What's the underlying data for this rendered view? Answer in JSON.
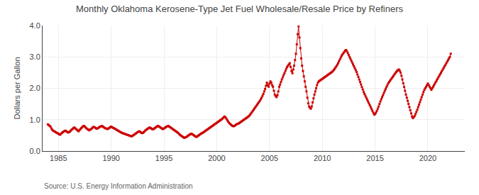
{
  "chart_data": {
    "type": "line",
    "title": "Monthly Oklahoma Kerosene-Type Jet Fuel Wholesale/Resale Price by Refiners",
    "ylabel": "Dollars per Gallon",
    "annotations": [
      "Source: U.S. Energy Information Administration"
    ],
    "color": "#cc0000",
    "marker": "square",
    "line_style": "solid",
    "grid": true,
    "xlim": [
      1983.5,
      2023.5
    ],
    "ylim": [
      0.0,
      4.0
    ],
    "xticks": [
      1985,
      1990,
      1995,
      2000,
      2005,
      2010,
      2015,
      2020
    ],
    "yticks": [
      {
        "value": 0.0,
        "label": "0.0"
      },
      {
        "value": 1.0,
        "label": "1.0"
      },
      {
        "value": 2.0,
        "label": "2.0"
      },
      {
        "value": 3.0,
        "label": "3.0"
      },
      {
        "value": 4.0,
        "label": "4.0"
      }
    ],
    "x": [
      1984.0,
      1984.0833333333333,
      1984.1666666666667,
      1984.25,
      1984.3333333333333,
      1984.4166666666667,
      1984.5,
      1984.5833333333333,
      1984.6666666666667,
      1984.75,
      1984.8333333333333,
      1984.9166666666667,
      1985.0,
      1985.0833333333333,
      1985.1666666666667,
      1985.25,
      1985.3333333333333,
      1985.4166666666667,
      1985.5,
      1985.5833333333333,
      1985.6666666666667,
      1985.75,
      1985.8333333333333,
      1985.9166666666667,
      1986.0,
      1986.0833333333333,
      1986.1666666666667,
      1986.25,
      1986.3333333333333,
      1986.4166666666667,
      1986.5,
      1986.5833333333333,
      1986.6666666666667,
      1986.75,
      1986.8333333333333,
      1986.9166666666667,
      1987.0,
      1987.0833333333333,
      1987.1666666666667,
      1987.25,
      1987.3333333333333,
      1987.4166666666667,
      1987.5,
      1987.5833333333333,
      1987.6666666666667,
      1987.75,
      1987.8333333333333,
      1987.9166666666667,
      1988.0,
      1988.0833333333333,
      1988.1666666666667,
      1988.25,
      1988.3333333333333,
      1988.4166666666667,
      1988.5,
      1988.5833333333333,
      1988.6666666666667,
      1988.75,
      1988.8333333333333,
      1988.9166666666667,
      1989.0,
      1989.0833333333333,
      1989.1666666666667,
      1989.25,
      1989.3333333333333,
      1989.4166666666667,
      1989.5,
      1989.5833333333333,
      1989.6666666666667,
      1989.75,
      1989.8333333333333,
      1989.9166666666667,
      1990.0,
      1990.0833333333333,
      1990.1666666666667,
      1990.25,
      1990.3333333333333,
      1990.4166666666667,
      1990.5,
      1990.5833333333333,
      1990.6666666666667,
      1990.75,
      1990.8333333333333,
      1990.9166666666667,
      1991.0,
      1991.0833333333333,
      1991.1666666666667,
      1991.25,
      1991.3333333333333,
      1991.4166666666667,
      1991.5,
      1991.5833333333333,
      1991.6666666666667,
      1991.75,
      1991.8333333333333,
      1991.9166666666667,
      1992.0,
      1992.0833333333333,
      1992.1666666666667,
      1992.25,
      1992.3333333333333,
      1992.4166666666667,
      1992.5,
      1992.5833333333333,
      1992.6666666666667,
      1992.75,
      1992.8333333333333,
      1992.9166666666667,
      1993.0,
      1993.0833333333333,
      1993.1666666666667,
      1993.25,
      1993.3333333333333,
      1993.4166666666667,
      1993.5,
      1993.5833333333333,
      1993.6666666666667,
      1993.75,
      1993.8333333333333,
      1993.9166666666667,
      1994.0,
      1994.0833333333333,
      1994.1666666666667,
      1994.25,
      1994.3333333333333,
      1994.4166666666667,
      1994.5,
      1994.5833333333333,
      1994.6666666666667,
      1994.75,
      1994.8333333333333,
      1994.9166666666667,
      1995.0,
      1995.0833333333333,
      1995.1666666666667,
      1995.25,
      1995.3333333333333,
      1995.4166666666667,
      1995.5,
      1995.5833333333333,
      1995.6666666666667,
      1995.75,
      1995.8333333333333,
      1995.9166666666667,
      1996.0,
      1996.0833333333333,
      1996.1666666666667,
      1996.25,
      1996.3333333333333,
      1996.4166666666667,
      1996.5,
      1996.5833333333333,
      1996.6666666666667,
      1996.75,
      1996.8333333333333,
      1996.9166666666667,
      1997.0,
      1997.0833333333333,
      1997.1666666666667,
      1997.25,
      1997.3333333333333,
      1997.4166666666667,
      1997.5,
      1997.5833333333333,
      1997.6666666666667,
      1997.75,
      1997.8333333333333,
      1997.9166666666667,
      1998.0,
      1998.0833333333333,
      1998.1666666666667,
      1998.25,
      1998.3333333333333,
      1998.4166666666667,
      1998.5,
      1998.5833333333333,
      1998.6666666666667,
      1998.75,
      1998.8333333333333,
      1998.9166666666667,
      1999.0,
      1999.0833333333333,
      1999.1666666666667,
      1999.25,
      1999.3333333333333,
      1999.4166666666667,
      1999.5,
      1999.5833333333333,
      1999.6666666666667,
      1999.75,
      1999.8333333333333,
      1999.9166666666667,
      2000.0,
      2000.0833333333333,
      2000.1666666666667,
      2000.25,
      2000.3333333333333,
      2000.4166666666667,
      2000.5,
      2000.5833333333333,
      2000.6666666666667,
      2000.75,
      2000.8333333333333,
      2000.9166666666667,
      2001.0,
      2001.0833333333333,
      2001.1666666666667,
      2001.25,
      2001.3333333333333,
      2001.4166666666667,
      2001.5,
      2001.5833333333333,
      2001.6666666666667,
      2001.75,
      2001.8333333333333,
      2001.9166666666667,
      2002.0,
      2002.0833333333333,
      2002.1666666666667,
      2002.25,
      2002.3333333333333,
      2002.4166666666667,
      2002.5,
      2002.5833333333333,
      2002.6666666666667,
      2002.75,
      2002.8333333333333,
      2002.9166666666667,
      2003.0,
      2003.0833333333333,
      2003.1666666666667,
      2003.25,
      2003.3333333333333,
      2003.4166666666667,
      2003.5,
      2003.5833333333333,
      2003.6666666666667,
      2003.75,
      2003.8333333333333,
      2003.9166666666667,
      2004.0,
      2004.0833333333333,
      2004.1666666666667,
      2004.25,
      2004.3333333333333,
      2004.4166666666667,
      2004.5,
      2004.5833333333333,
      2004.6666666666667,
      2004.75,
      2004.8333333333333,
      2004.9166666666667,
      2005.0,
      2005.0833333333333,
      2005.1666666666667,
      2005.25,
      2005.3333333333333,
      2005.4166666666667,
      2005.5,
      2005.5833333333333,
      2005.6666666666667,
      2005.75,
      2005.8333333333333,
      2005.9166666666667,
      2006.0,
      2006.0833333333333,
      2006.1666666666667,
      2006.25,
      2006.3333333333333,
      2006.4166666666667,
      2006.5,
      2006.5833333333333,
      2006.6666666666667,
      2006.75,
      2006.8333333333333,
      2006.9166666666667,
      2007.0,
      2007.0833333333333,
      2007.1666666666667,
      2007.25,
      2007.3333333333333,
      2007.4166666666667,
      2007.5,
      2007.5833333333333,
      2007.6666666666667,
      2007.75,
      2007.8333333333333,
      2007.9166666666667,
      2008.0,
      2008.0833333333333,
      2008.1666666666667,
      2008.25,
      2008.3333333333333,
      2008.4166666666667,
      2008.5,
      2008.5833333333333,
      2008.6666666666667,
      2008.75,
      2008.8333333333333,
      2008.9166666666667,
      2009.0,
      2009.0833333333333,
      2009.1666666666667,
      2009.25,
      2009.3333333333333,
      2009.4166666666667,
      2009.5,
      2009.5833333333333,
      2009.6666666666667,
      2009.75,
      2009.8333333333333,
      2009.9166666666667,
      2010.0,
      2010.0833333333333,
      2010.1666666666667,
      2010.25,
      2010.3333333333333,
      2010.4166666666667,
      2010.5,
      2010.5833333333333,
      2010.6666666666667,
      2010.75,
      2010.8333333333333,
      2010.9166666666667,
      2011.0,
      2011.0833333333333,
      2011.1666666666667,
      2011.25,
      2011.3333333333333,
      2011.4166666666667,
      2011.5,
      2011.5833333333333,
      2011.6666666666667,
      2011.75,
      2011.8333333333333,
      2011.9166666666667,
      2012.0,
      2012.0833333333333,
      2012.1666666666667,
      2012.25,
      2012.3333333333333,
      2012.4166666666667,
      2012.5,
      2012.5833333333333,
      2012.6666666666667,
      2012.75,
      2012.8333333333333,
      2012.9166666666667,
      2013.0,
      2013.0833333333333,
      2013.1666666666667,
      2013.25,
      2013.3333333333333,
      2013.4166666666667,
      2013.5,
      2013.5833333333333,
      2013.6666666666667,
      2013.75,
      2013.8333333333333,
      2013.9166666666667,
      2014.0,
      2014.0833333333333,
      2014.1666666666667,
      2014.25,
      2014.3333333333333,
      2014.4166666666667,
      2014.5,
      2014.5833333333333,
      2014.6666666666667,
      2014.75,
      2014.8333333333333,
      2014.9166666666667,
      2015.0,
      2015.0833333333333,
      2015.1666666666667,
      2015.25,
      2015.3333333333333,
      2015.4166666666667,
      2015.5,
      2015.5833333333333,
      2015.6666666666667,
      2015.75,
      2015.8333333333333,
      2015.9166666666667,
      2016.0,
      2016.0833333333333,
      2016.1666666666667,
      2016.25,
      2016.3333333333333,
      2016.4166666666667,
      2016.5,
      2016.5833333333333,
      2016.6666666666667,
      2016.75,
      2016.8333333333333,
      2016.9166666666667,
      2017.0,
      2017.0833333333333,
      2017.1666666666667,
      2017.25,
      2017.3333333333333,
      2017.4166666666667,
      2017.5,
      2017.5833333333333,
      2017.6666666666667,
      2017.75,
      2017.8333333333333,
      2017.9166666666667,
      2018.0,
      2018.0833333333333,
      2018.1666666666667,
      2018.25,
      2018.3333333333333,
      2018.4166666666667,
      2018.5,
      2018.5833333333333,
      2018.6666666666667,
      2018.75,
      2018.8333333333333,
      2018.9166666666667,
      2019.0,
      2019.0833333333333,
      2019.1666666666667,
      2019.25,
      2019.3333333333333,
      2019.4166666666667,
      2019.5,
      2019.5833333333333,
      2019.6666666666667,
      2019.75,
      2019.8333333333333,
      2019.9166666666667,
      2020.0,
      2020.0833333333333,
      2020.1666666666667,
      2020.25,
      2020.3333333333333,
      2020.4166666666667,
      2020.5,
      2020.5833333333333,
      2020.6666666666667,
      2020.75,
      2020.8333333333333,
      2020.9166666666667,
      2021.0,
      2021.0833333333333,
      2021.1666666666667,
      2021.25,
      2021.3333333333333,
      2021.4166666666667,
      2021.5,
      2021.5833333333333,
      2021.6666666666667,
      2021.75,
      2021.8333333333333,
      2021.9166666666667,
      2022.0,
      2022.0833333333333,
      2022.1666666666667
    ],
    "values": [
      0.85,
      0.83,
      0.8,
      0.78,
      0.72,
      0.68,
      0.65,
      0.63,
      0.62,
      0.6,
      0.58,
      0.57,
      0.55,
      0.53,
      0.52,
      0.55,
      0.58,
      0.6,
      0.62,
      0.64,
      0.65,
      0.63,
      0.61,
      0.59,
      0.6,
      0.62,
      0.65,
      0.68,
      0.7,
      0.73,
      0.75,
      0.73,
      0.7,
      0.68,
      0.65,
      0.63,
      0.67,
      0.7,
      0.73,
      0.76,
      0.79,
      0.8,
      0.78,
      0.75,
      0.72,
      0.7,
      0.68,
      0.66,
      0.68,
      0.7,
      0.72,
      0.75,
      0.77,
      0.76,
      0.74,
      0.72,
      0.71,
      0.73,
      0.75,
      0.77,
      0.78,
      0.8,
      0.79,
      0.77,
      0.75,
      0.73,
      0.72,
      0.71,
      0.7,
      0.72,
      0.74,
      0.76,
      0.78,
      0.76,
      0.74,
      0.73,
      0.71,
      0.7,
      0.68,
      0.66,
      0.65,
      0.63,
      0.61,
      0.6,
      0.58,
      0.57,
      0.56,
      0.55,
      0.54,
      0.53,
      0.52,
      0.51,
      0.5,
      0.49,
      0.48,
      0.47,
      0.48,
      0.5,
      0.52,
      0.54,
      0.56,
      0.58,
      0.6,
      0.62,
      0.63,
      0.61,
      0.59,
      0.57,
      0.58,
      0.6,
      0.63,
      0.66,
      0.68,
      0.7,
      0.72,
      0.74,
      0.75,
      0.73,
      0.71,
      0.69,
      0.7,
      0.72,
      0.74,
      0.76,
      0.78,
      0.8,
      0.79,
      0.77,
      0.75,
      0.73,
      0.71,
      0.7,
      0.72,
      0.74,
      0.76,
      0.78,
      0.79,
      0.8,
      0.78,
      0.76,
      0.74,
      0.72,
      0.7,
      0.68,
      0.66,
      0.64,
      0.62,
      0.6,
      0.58,
      0.55,
      0.52,
      0.5,
      0.48,
      0.46,
      0.44,
      0.42,
      0.43,
      0.44,
      0.46,
      0.48,
      0.5,
      0.52,
      0.54,
      0.55,
      0.54,
      0.52,
      0.5,
      0.48,
      0.46,
      0.45,
      0.47,
      0.49,
      0.51,
      0.53,
      0.55,
      0.57,
      0.58,
      0.6,
      0.62,
      0.64,
      0.66,
      0.68,
      0.7,
      0.72,
      0.74,
      0.76,
      0.78,
      0.8,
      0.82,
      0.84,
      0.86,
      0.88,
      0.9,
      0.92,
      0.94,
      0.96,
      0.98,
      1.0,
      1.02,
      1.05,
      1.08,
      1.1,
      1.07,
      1.03,
      0.98,
      0.94,
      0.9,
      0.87,
      0.84,
      0.82,
      0.8,
      0.79,
      0.8,
      0.82,
      0.84,
      0.86,
      0.87,
      0.88,
      0.9,
      0.92,
      0.94,
      0.96,
      0.98,
      1.0,
      1.02,
      1.04,
      1.06,
      1.08,
      1.1,
      1.13,
      1.16,
      1.2,
      1.24,
      1.28,
      1.32,
      1.36,
      1.4,
      1.44,
      1.48,
      1.52,
      1.56,
      1.6,
      1.65,
      1.7,
      1.76,
      1.82,
      1.9,
      1.98,
      2.08,
      2.18,
      2.1,
      2.05,
      2.15,
      2.22,
      2.18,
      2.1,
      2.05,
      1.92,
      1.8,
      1.75,
      1.72,
      1.78,
      1.9,
      2.05,
      2.12,
      2.2,
      2.28,
      2.35,
      2.42,
      2.48,
      2.55,
      2.62,
      2.68,
      2.72,
      2.76,
      2.8,
      2.68,
      2.55,
      2.48,
      2.6,
      2.72,
      2.9,
      3.1,
      3.4,
      3.72,
      3.98,
      3.62,
      3.28,
      2.95,
      2.72,
      2.55,
      2.38,
      2.22,
      2.05,
      1.9,
      1.7,
      1.52,
      1.42,
      1.38,
      1.35,
      1.42,
      1.55,
      1.68,
      1.8,
      1.9,
      2.0,
      2.1,
      2.18,
      2.22,
      2.24,
      2.26,
      2.28,
      2.3,
      2.32,
      2.34,
      2.36,
      2.38,
      2.4,
      2.42,
      2.44,
      2.46,
      2.48,
      2.5,
      2.52,
      2.55,
      2.58,
      2.62,
      2.66,
      2.7,
      2.75,
      2.8,
      2.86,
      2.92,
      2.98,
      3.04,
      3.08,
      3.12,
      3.16,
      3.2,
      3.22,
      3.18,
      3.12,
      3.06,
      3.0,
      2.94,
      2.88,
      2.82,
      2.76,
      2.7,
      2.64,
      2.58,
      2.52,
      2.44,
      2.36,
      2.28,
      2.2,
      2.12,
      2.04,
      1.96,
      1.88,
      1.82,
      1.76,
      1.7,
      1.64,
      1.58,
      1.52,
      1.46,
      1.4,
      1.34,
      1.28,
      1.22,
      1.16,
      1.18,
      1.22,
      1.28,
      1.35,
      1.42,
      1.5,
      1.58,
      1.65,
      1.72,
      1.78,
      1.85,
      1.92,
      1.98,
      2.04,
      2.1,
      2.16,
      2.2,
      2.24,
      2.28,
      2.32,
      2.36,
      2.4,
      2.44,
      2.48,
      2.52,
      2.55,
      2.58,
      2.6,
      2.56,
      2.5,
      2.4,
      2.28,
      2.16,
      2.04,
      1.92,
      1.8,
      1.7,
      1.6,
      1.5,
      1.4,
      1.3,
      1.2,
      1.1,
      1.05,
      1.08,
      1.12,
      1.18,
      1.25,
      1.32,
      1.4,
      1.48,
      1.56,
      1.64,
      1.72,
      1.8,
      1.88,
      1.95,
      2.0,
      2.05,
      2.1,
      2.15,
      2.1,
      2.05,
      2.0,
      1.95,
      2.0,
      2.05,
      2.1,
      2.15,
      2.2,
      2.25,
      2.3,
      2.35,
      2.4,
      2.45,
      2.5,
      2.55,
      2.6,
      2.65,
      2.7,
      2.75,
      2.8,
      2.85,
      2.9,
      2.95,
      3.0,
      3.1
    ]
  }
}
